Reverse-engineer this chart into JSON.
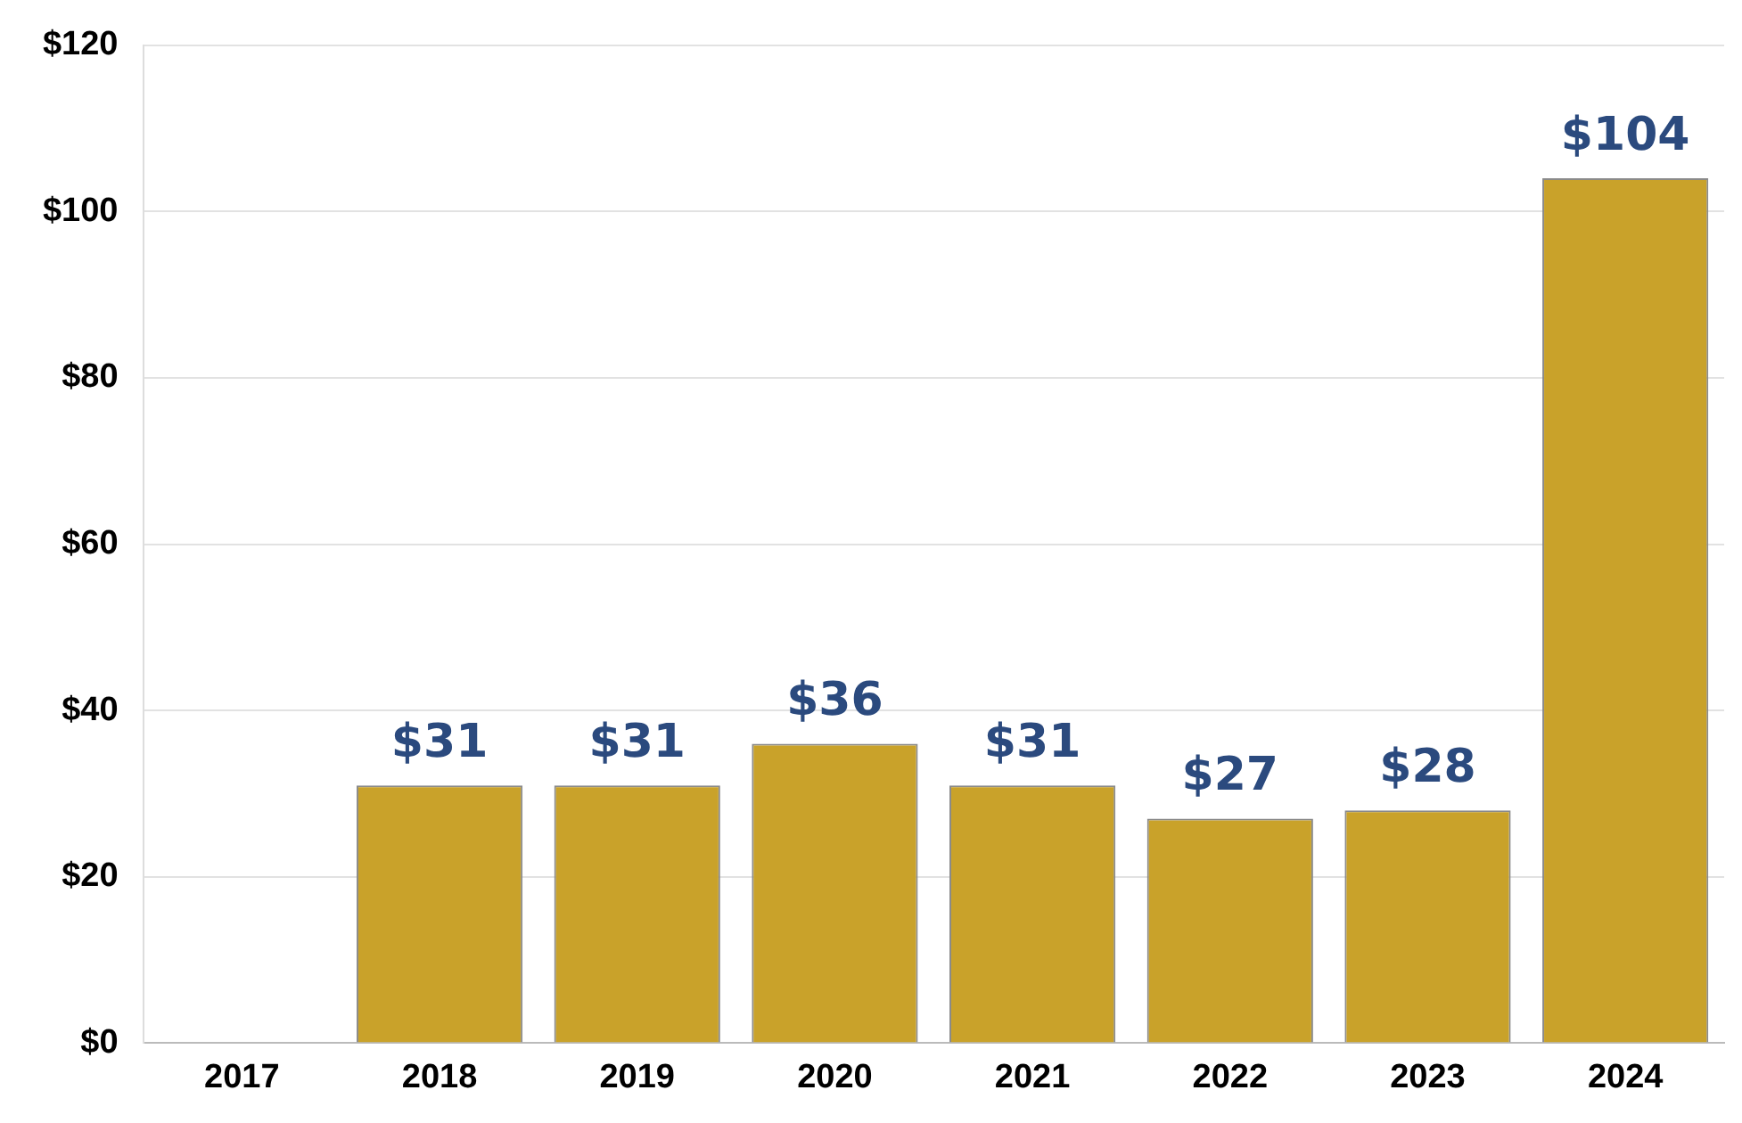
{
  "chart_data": {
    "type": "bar",
    "categories": [
      "2017",
      "2018",
      "2019",
      "2020",
      "2021",
      "2022",
      "2023",
      "2024"
    ],
    "values": [
      null,
      31,
      31,
      36,
      31,
      27,
      28,
      104
    ],
    "color": "#c9a22a",
    "ylim": [
      0,
      120
    ],
    "yticks": [
      {
        "value": 0,
        "label": "$0"
      },
      {
        "value": 20,
        "label": "$20"
      },
      {
        "value": 40,
        "label": "$40"
      },
      {
        "value": 60,
        "label": "$60"
      },
      {
        "value": 80,
        "label": "$80"
      },
      {
        "value": 100,
        "label": "$100"
      },
      {
        "value": 120,
        "label": "$120"
      }
    ],
    "value_labels": [
      null,
      "$31",
      "$31",
      "$36",
      "$31",
      "$27",
      "$28",
      "$104"
    ],
    "grid": "y",
    "legend": false
  }
}
